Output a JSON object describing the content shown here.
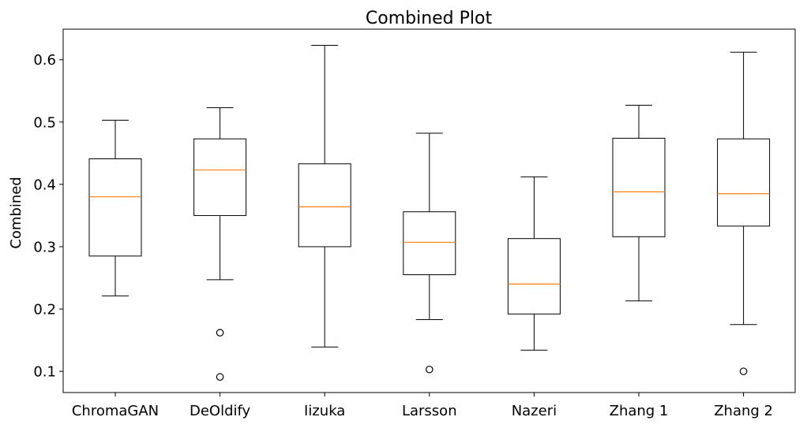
{
  "chart_data": {
    "type": "box",
    "title": "Combined Plot",
    "xlabel": "",
    "ylabel": "Combined",
    "ylim": [
      0.066,
      0.649
    ],
    "yticks": [
      0.1,
      0.2,
      0.3,
      0.4,
      0.5,
      0.6
    ],
    "ytick_labels": [
      "0.1",
      "0.2",
      "0.3",
      "0.4",
      "0.5",
      "0.6"
    ],
    "grid": false,
    "categories": [
      "ChromaGAN",
      "DeOldify",
      "Iizuka",
      "Larsson",
      "Nazeri",
      "Zhang 1",
      "Zhang 2"
    ],
    "boxes": [
      {
        "name": "ChromaGAN",
        "whisker_low": 0.221,
        "q1": 0.285,
        "median": 0.38,
        "q3": 0.441,
        "whisker_high": 0.503,
        "outliers": []
      },
      {
        "name": "DeOldify",
        "whisker_low": 0.247,
        "q1": 0.35,
        "median": 0.423,
        "q3": 0.473,
        "whisker_high": 0.523,
        "outliers": [
          0.162,
          0.091
        ]
      },
      {
        "name": "Iizuka",
        "whisker_low": 0.139,
        "q1": 0.3,
        "median": 0.364,
        "q3": 0.433,
        "whisker_high": 0.623,
        "outliers": []
      },
      {
        "name": "Larsson",
        "whisker_low": 0.183,
        "q1": 0.255,
        "median": 0.307,
        "q3": 0.356,
        "whisker_high": 0.482,
        "outliers": [
          0.103
        ]
      },
      {
        "name": "Nazeri",
        "whisker_low": 0.134,
        "q1": 0.192,
        "median": 0.24,
        "q3": 0.313,
        "whisker_high": 0.412,
        "outliers": []
      },
      {
        "name": "Zhang 1",
        "whisker_low": 0.213,
        "q1": 0.316,
        "median": 0.388,
        "q3": 0.474,
        "whisker_high": 0.527,
        "outliers": []
      },
      {
        "name": "Zhang 2",
        "whisker_low": 0.175,
        "q1": 0.333,
        "median": 0.385,
        "q3": 0.473,
        "whisker_high": 0.612,
        "outliers": [
          0.1
        ]
      }
    ],
    "colors": {
      "box": "#000000",
      "median": "#ff7f0e",
      "outlier_edge": "#000000"
    }
  }
}
